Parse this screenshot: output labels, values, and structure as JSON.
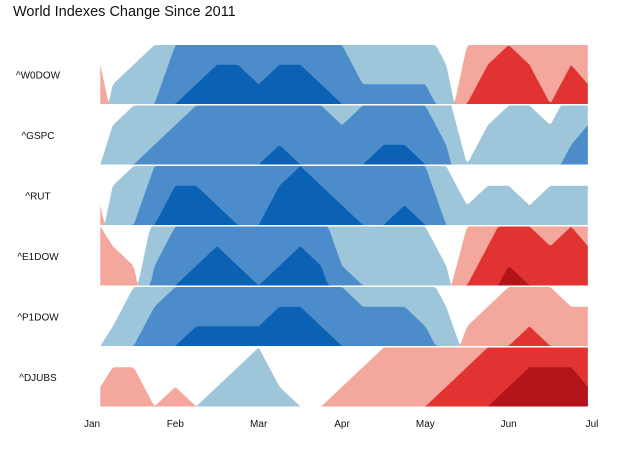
{
  "chart_data": {
    "type": "horizon",
    "title": "World Indexes Change Since 2011",
    "xlabel": "",
    "ylabel": "",
    "x_ticks": [
      "Jan",
      "Feb",
      "Mar",
      "Apr",
      "May",
      "Jun",
      "Jul"
    ],
    "x_tick_positions": [
      0,
      1,
      2,
      3,
      4,
      5,
      6
    ],
    "xlim": [
      0,
      6
    ],
    "band_size": 0.03,
    "palette": {
      "positive": [
        "#9ec6db",
        "#4c8ccb",
        "#0b62b5"
      ],
      "negative": [
        "#f4a79c",
        "#e03332",
        "#b11419"
      ]
    },
    "grid": false,
    "legend": "none",
    "series": [
      {
        "name": "^W0DOW",
        "x": [
          0.1,
          0.25,
          0.5,
          0.75,
          1.0,
          1.25,
          1.5,
          1.75,
          2.0,
          2.25,
          2.5,
          2.75,
          3.0,
          3.25,
          3.5,
          3.75,
          4.0,
          4.25,
          4.5,
          4.75,
          5.0,
          5.25,
          5.5,
          5.75,
          5.95
        ],
        "values": [
          -0.02,
          0.01,
          0.02,
          0.03,
          0.06,
          0.07,
          0.08,
          0.08,
          0.07,
          0.08,
          0.08,
          0.07,
          0.06,
          0.04,
          0.04,
          0.04,
          0.04,
          0.02,
          -0.03,
          -0.05,
          -0.06,
          -0.05,
          -0.03,
          -0.05,
          -0.04
        ]
      },
      {
        "name": "^GSPC",
        "x": [
          0.1,
          0.25,
          0.5,
          0.75,
          1.0,
          1.25,
          1.5,
          1.75,
          2.0,
          2.25,
          2.5,
          2.75,
          3.0,
          3.25,
          3.5,
          3.75,
          4.0,
          4.25,
          4.5,
          4.75,
          5.0,
          5.25,
          5.5,
          5.75,
          5.95
        ],
        "values": [
          0.0,
          0.02,
          0.03,
          0.04,
          0.05,
          0.06,
          0.06,
          0.06,
          0.06,
          0.07,
          0.06,
          0.06,
          0.05,
          0.06,
          0.07,
          0.07,
          0.06,
          0.04,
          0.0,
          0.02,
          0.03,
          0.03,
          0.02,
          0.04,
          0.05
        ]
      },
      {
        "name": "^RUT",
        "x": [
          0.1,
          0.25,
          0.5,
          0.75,
          1.0,
          1.25,
          1.5,
          1.75,
          2.0,
          2.25,
          2.5,
          2.75,
          3.0,
          3.25,
          3.5,
          3.75,
          4.0,
          4.25,
          4.5,
          4.75,
          5.0,
          5.25,
          5.5,
          5.75,
          5.95
        ],
        "values": [
          -0.01,
          0.02,
          0.03,
          0.06,
          0.08,
          0.08,
          0.07,
          0.06,
          0.06,
          0.08,
          0.09,
          0.08,
          0.07,
          0.06,
          0.06,
          0.07,
          0.06,
          0.03,
          0.01,
          0.02,
          0.02,
          0.01,
          0.02,
          0.02,
          0.02
        ]
      },
      {
        "name": "^E1DOW",
        "x": [
          0.1,
          0.25,
          0.5,
          0.75,
          1.0,
          1.25,
          1.5,
          1.75,
          2.0,
          2.25,
          2.5,
          2.75,
          3.0,
          3.25,
          3.5,
          3.75,
          4.0,
          4.25,
          4.5,
          4.75,
          5.0,
          5.25,
          5.5,
          5.75,
          5.95
        ],
        "values": [
          -0.03,
          -0.02,
          -0.01,
          0.04,
          0.06,
          0.07,
          0.08,
          0.07,
          0.06,
          0.07,
          0.08,
          0.07,
          0.04,
          0.03,
          0.03,
          0.03,
          0.03,
          0.01,
          -0.03,
          -0.05,
          -0.07,
          -0.06,
          -0.05,
          -0.06,
          -0.05
        ]
      },
      {
        "name": "^P1DOW",
        "x": [
          0.1,
          0.25,
          0.5,
          0.75,
          1.0,
          1.25,
          1.5,
          1.75,
          2.0,
          2.25,
          2.5,
          2.75,
          3.0,
          3.25,
          3.5,
          3.75,
          4.0,
          4.25,
          4.5,
          4.75,
          5.0,
          5.25,
          5.5,
          5.75,
          5.95
        ],
        "values": [
          0.0,
          0.01,
          0.03,
          0.05,
          0.06,
          0.07,
          0.07,
          0.07,
          0.07,
          0.08,
          0.08,
          0.07,
          0.06,
          0.05,
          0.05,
          0.05,
          0.04,
          0.02,
          -0.01,
          -0.02,
          -0.03,
          -0.04,
          -0.03,
          -0.02,
          -0.02
        ]
      },
      {
        "name": "^DJUBS",
        "x": [
          0.1,
          0.25,
          0.5,
          0.75,
          1.0,
          1.25,
          1.5,
          1.75,
          2.0,
          2.25,
          2.5,
          2.75,
          3.0,
          3.25,
          3.5,
          3.75,
          4.0,
          4.25,
          4.5,
          4.75,
          5.0,
          5.25,
          5.5,
          5.75,
          5.95
        ],
        "values": [
          -0.01,
          -0.02,
          -0.02,
          0.0,
          -0.01,
          0.0,
          0.01,
          0.02,
          0.03,
          0.01,
          0.0,
          0.0,
          -0.01,
          -0.02,
          -0.03,
          -0.03,
          -0.03,
          -0.04,
          -0.05,
          -0.06,
          -0.07,
          -0.08,
          -0.08,
          -0.08,
          -0.07
        ]
      }
    ]
  }
}
